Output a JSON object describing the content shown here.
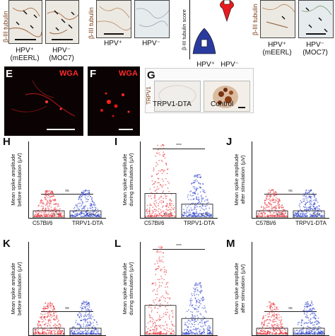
{
  "figure": {
    "panelA": {
      "ylabel": "β-III tubulin",
      "samples": [
        {
          "hpv": "HPV⁺",
          "model": "(mEERL)"
        },
        {
          "hpv": "HPV⁻",
          "model": "(MOC7)"
        }
      ]
    },
    "panelB": {
      "ylabel": "β-III tubulin",
      "samples": [
        {
          "hpv": "HPV⁺"
        },
        {
          "hpv": "HPV⁻"
        }
      ]
    },
    "panelC": {
      "ylabel": "β-III tubulin score",
      "categories": [
        "HPV⁺",
        "HPV⁻"
      ],
      "colors": [
        "#2a3a9e",
        "#e8191f"
      ]
    },
    "panelD": {
      "ylabel": "β-III tubulin",
      "samples": [
        {
          "hpv": "HPV⁺",
          "model": "(mEERL)"
        },
        {
          "hpv": "HPV⁻",
          "model": "(MOC7)"
        }
      ]
    },
    "panelE": {
      "letter": "E",
      "stain": "WGA"
    },
    "panelF": {
      "letter": "F",
      "stain": "WGA"
    },
    "panelG": {
      "letter": "G",
      "ylabel": "TRPV1",
      "captions": [
        "TRPV1-DTA",
        "Control"
      ]
    },
    "plots": [
      {
        "letter": "H",
        "ylabel_line1": "Mean spike amplitude",
        "ylabel_line2": "before stimulation (µV)",
        "sig": "ns",
        "means": [
          "22.99",
          "25.15"
        ],
        "xticks": [
          "C57Bl/6",
          "TRPV1-DTA"
        ]
      },
      {
        "letter": "I",
        "ylabel_line1": "Mean spike amplitude",
        "ylabel_line2": "during stimulation (µV)",
        "sig": "****",
        "means": [
          "85.27",
          "47.85"
        ],
        "xticks": [
          "C57Bl/6",
          "TRPV1-DTA"
        ]
      },
      {
        "letter": "J",
        "ylabel_line1": "Mean spike amplitude",
        "ylabel_line2": "after stimulation (µV)",
        "sig": "ns",
        "means": [
          "25.42",
          "26.64"
        ],
        "xticks": [
          "C57Bl/6",
          "TRPV1-DTA"
        ]
      },
      {
        "letter": "K",
        "ylabel_line1": "Mean spike amplitude",
        "ylabel_line2": "before stimulation (µV)",
        "sig": "ns",
        "means": [],
        "xticks": []
      },
      {
        "letter": "L",
        "ylabel_line1": "Mean spike amplitude",
        "ylabel_line2": "during stimulation (µV)",
        "sig": "****",
        "means": [],
        "xticks": []
      },
      {
        "letter": "M",
        "ylabel_line1": "Mean spike amplitude",
        "ylabel_line2": "after stimulation (µV)",
        "sig": "ns",
        "means": [],
        "xticks": []
      }
    ]
  },
  "colors": {
    "c57": "#e8202a",
    "trpv": "#2338c8",
    "label_brown": "#7a3b10",
    "wga": "#ff2a2a"
  }
}
